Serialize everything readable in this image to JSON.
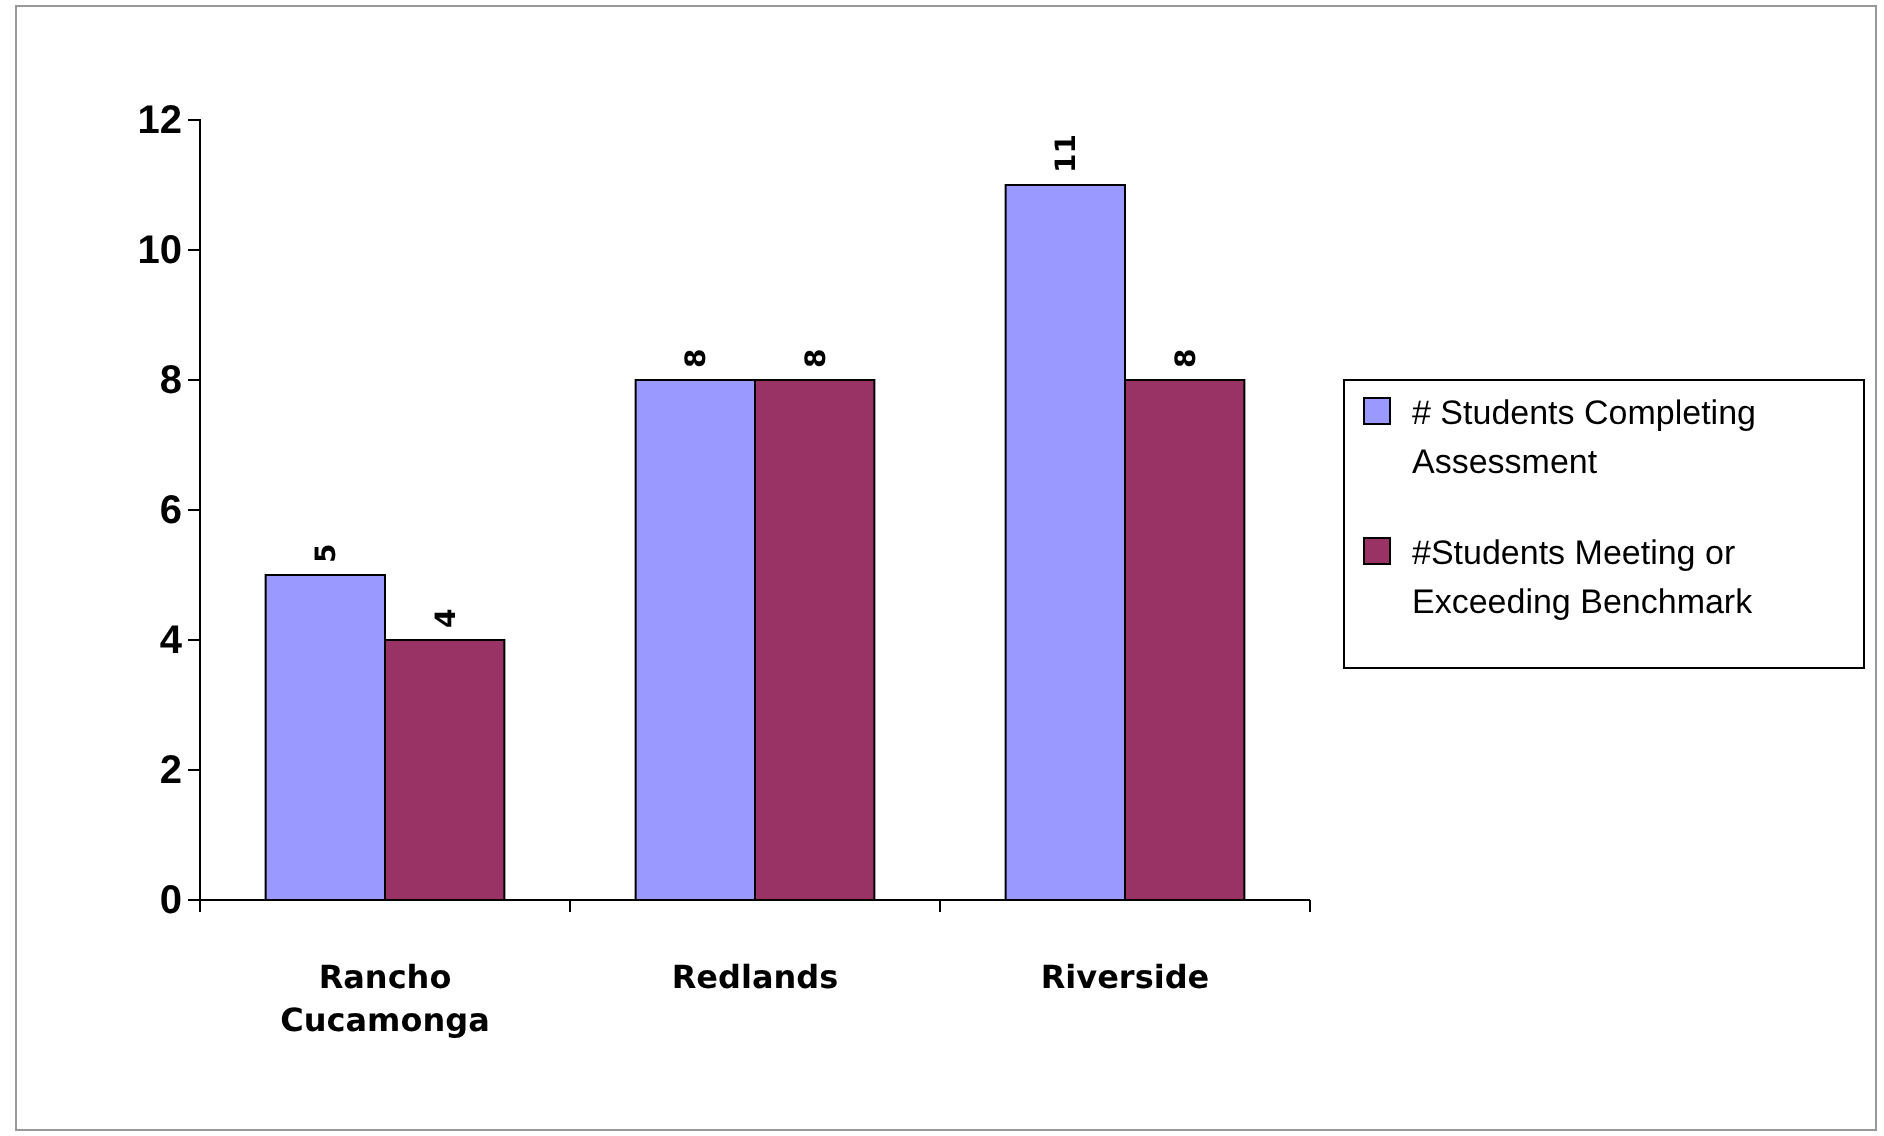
{
  "chart_data": {
    "type": "bar",
    "categories": [
      "Rancho Cucamonga",
      "Redlands",
      "Riverside"
    ],
    "series": [
      {
        "name": "# Students Completing Assessment",
        "color": "#9999ff",
        "values": [
          5,
          8,
          11
        ]
      },
      {
        "name": "#Students Meeting or Exceeding Benchmark",
        "color": "#993366",
        "values": [
          4,
          8,
          8
        ]
      }
    ],
    "ylim": [
      0,
      12
    ],
    "yticks": [
      0,
      2,
      4,
      6,
      8,
      10,
      12
    ],
    "data_labels": true,
    "legend": "right",
    "grid": false
  }
}
